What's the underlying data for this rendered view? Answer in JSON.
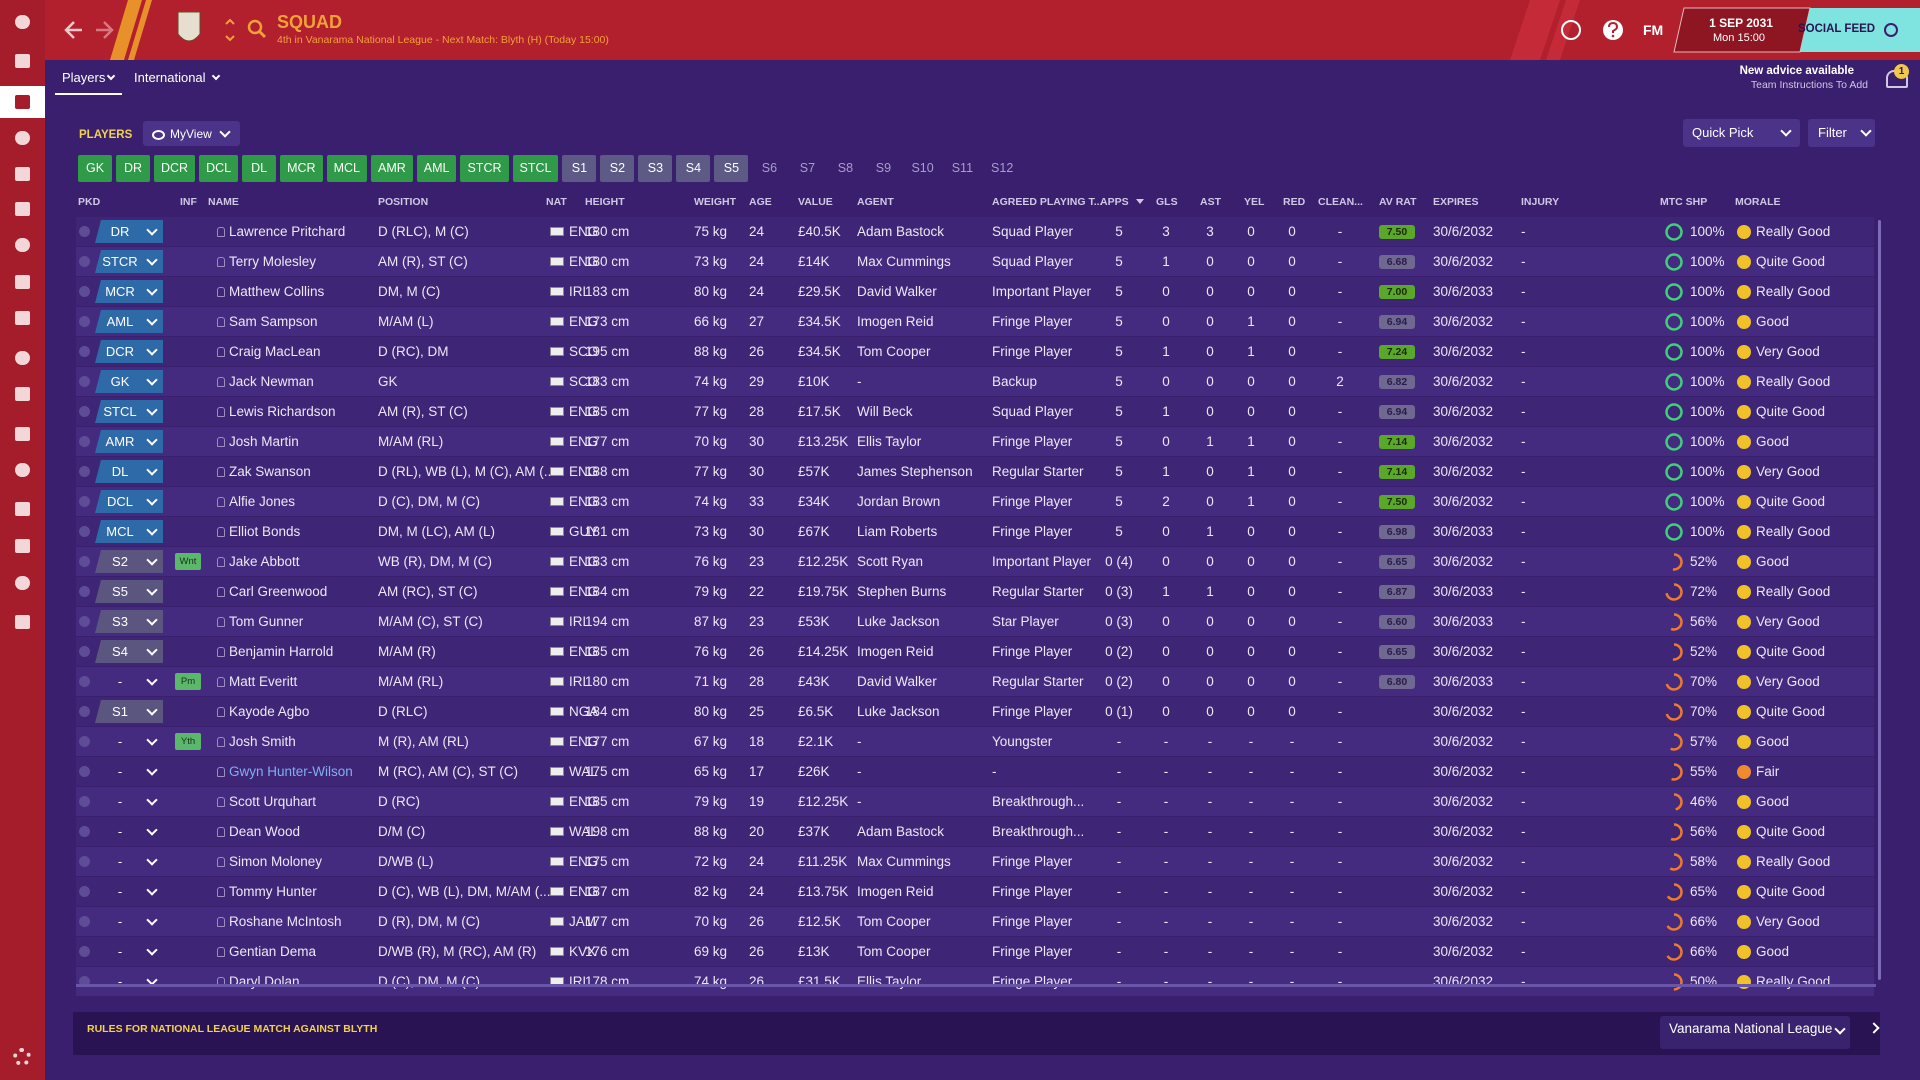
{
  "header": {
    "title": "SQUAD",
    "subtitle": "4th in Vanarama National League - Next Match: Blyth (H) (Today 15:00)",
    "date": "1 SEP 2031",
    "time": "Mon 15:00",
    "brand": "FM",
    "social": "SOCIAL FEED"
  },
  "tabs": [
    "Players",
    "International"
  ],
  "advice": {
    "title": "New advice available",
    "detail": "Team Instructions To Add",
    "count": "1"
  },
  "panel": {
    "label": "PLAYERS",
    "view": "MyView",
    "quick_pick": "Quick Pick",
    "filter": "Filter"
  },
  "positions": {
    "starting": [
      "GK",
      "DR",
      "DCR",
      "DCL",
      "DL",
      "MCR",
      "MCL",
      "AMR",
      "AML",
      "STCR",
      "STCL"
    ],
    "subs_used": [
      "S1",
      "S2",
      "S3",
      "S4",
      "S5"
    ],
    "subs_empty": [
      "S6",
      "S7",
      "S8",
      "S9",
      "S10",
      "S11",
      "S12"
    ]
  },
  "table": {
    "columns": [
      "PKD",
      "INF",
      "NAME",
      "POSITION",
      "NAT",
      "HEIGHT",
      "WEIGHT",
      "AGE",
      "VALUE",
      "AGENT",
      "AGREED PLAYING T...",
      "APPS",
      "GLS",
      "AST",
      "YEL",
      "RED",
      "CLEAN...",
      "AV RAT",
      "EXPIRES",
      "INJURY",
      "MTC SHP",
      "MORALE"
    ],
    "rows": [
      [
        "DR",
        null,
        "Lawrence Pritchard",
        "D (RLC), M (C)",
        "ENG",
        "180 cm",
        "75 kg",
        "24",
        "£40.5K",
        "Adam Bastock",
        "Squad Player",
        "5",
        "3",
        "3",
        "0",
        "0",
        "-",
        "7.50",
        "30/6/2032",
        "-",
        "100%",
        "Really Good"
      ],
      [
        "STCR",
        null,
        "Terry Molesley",
        "AM (R), ST (C)",
        "ENG",
        "180 cm",
        "73 kg",
        "24",
        "£14K",
        "Max Cummings",
        "Squad Player",
        "5",
        "1",
        "0",
        "0",
        "0",
        "-",
        "6.68",
        "30/6/2032",
        "-",
        "100%",
        "Quite Good"
      ],
      [
        "MCR",
        null,
        "Matthew Collins",
        "DM, M (C)",
        "IRL",
        "183 cm",
        "80 kg",
        "24",
        "£29.5K",
        "David Walker",
        "Important Player",
        "5",
        "0",
        "0",
        "0",
        "0",
        "-",
        "7.00",
        "30/6/2033",
        "-",
        "100%",
        "Really Good"
      ],
      [
        "AML",
        null,
        "Sam Sampson",
        "M/AM (L)",
        "ENG",
        "173 cm",
        "66 kg",
        "27",
        "£34.5K",
        "Imogen Reid",
        "Fringe Player",
        "5",
        "0",
        "0",
        "1",
        "0",
        "-",
        "6.94",
        "30/6/2032",
        "-",
        "100%",
        "Good"
      ],
      [
        "DCR",
        null,
        "Craig MacLean",
        "D (RC), DM",
        "SCO",
        "195 cm",
        "88 kg",
        "26",
        "£34.5K",
        "Tom Cooper",
        "Fringe Player",
        "5",
        "1",
        "0",
        "1",
        "0",
        "-",
        "7.24",
        "30/6/2032",
        "-",
        "100%",
        "Very Good"
      ],
      [
        "GK",
        null,
        "Jack Newman",
        "GK",
        "SCO",
        "183 cm",
        "74 kg",
        "29",
        "£10K",
        "-",
        "Backup",
        "5",
        "0",
        "0",
        "0",
        "0",
        "2",
        "6.82",
        "30/6/2032",
        "-",
        "100%",
        "Really Good"
      ],
      [
        "STCL",
        null,
        "Lewis Richardson",
        "AM (R), ST (C)",
        "ENG",
        "185 cm",
        "77 kg",
        "28",
        "£17.5K",
        "Will Beck",
        "Squad Player",
        "5",
        "1",
        "0",
        "0",
        "0",
        "-",
        "6.94",
        "30/6/2032",
        "-",
        "100%",
        "Quite Good"
      ],
      [
        "AMR",
        null,
        "Josh Martin",
        "M/AM (RL)",
        "ENG",
        "177 cm",
        "70 kg",
        "30",
        "£13.25K",
        "Ellis Taylor",
        "Fringe Player",
        "5",
        "0",
        "1",
        "1",
        "0",
        "-",
        "7.14",
        "30/6/2032",
        "-",
        "100%",
        "Good"
      ],
      [
        "DL",
        null,
        "Zak Swanson",
        "D (RL), WB (L), M (C), AM (...",
        "ENG",
        "188 cm",
        "77 kg",
        "30",
        "£57K",
        "James Stephenson",
        "Regular Starter",
        "5",
        "1",
        "0",
        "1",
        "0",
        "-",
        "7.14",
        "30/6/2032",
        "-",
        "100%",
        "Very Good"
      ],
      [
        "DCL",
        null,
        "Alfie Jones",
        "D (C), DM, M (C)",
        "ENG",
        "183 cm",
        "74 kg",
        "33",
        "£34K",
        "Jordan Brown",
        "Fringe Player",
        "5",
        "2",
        "0",
        "1",
        "0",
        "-",
        "7.50",
        "30/6/2032",
        "-",
        "100%",
        "Quite Good"
      ],
      [
        "MCL",
        null,
        "Elliot Bonds",
        "DM, M (LC), AM (L)",
        "GUY",
        "181 cm",
        "73 kg",
        "30",
        "£67K",
        "Liam Roberts",
        "Fringe Player",
        "5",
        "0",
        "1",
        "0",
        "0",
        "-",
        "6.98",
        "30/6/2033",
        "-",
        "100%",
        "Really Good"
      ],
      [
        "S2",
        "Wnt",
        "Jake Abbott",
        "WB (R), DM, M (C)",
        "ENG",
        "183 cm",
        "76 kg",
        "23",
        "£12.25K",
        "Scott Ryan",
        "Important Player",
        "0 (4)",
        "0",
        "0",
        "0",
        "0",
        "-",
        "6.65",
        "30/6/2032",
        "-",
        "52%",
        "Good"
      ],
      [
        "S5",
        null,
        "Carl Greenwood",
        "AM (RC), ST (C)",
        "ENG",
        "184 cm",
        "79 kg",
        "22",
        "£19.75K",
        "Stephen Burns",
        "Regular Starter",
        "0 (3)",
        "1",
        "1",
        "0",
        "0",
        "-",
        "6.87",
        "30/6/2033",
        "-",
        "72%",
        "Really Good"
      ],
      [
        "S3",
        null,
        "Tom Gunner",
        "M/AM (C), ST (C)",
        "IRL",
        "194 cm",
        "87 kg",
        "23",
        "£53K",
        "Luke Jackson",
        "Star Player",
        "0 (3)",
        "0",
        "0",
        "0",
        "0",
        "-",
        "6.60",
        "30/6/2033",
        "-",
        "56%",
        "Very Good"
      ],
      [
        "S4",
        null,
        "Benjamin Harrold",
        "M/AM (R)",
        "ENG",
        "185 cm",
        "76 kg",
        "26",
        "£14.25K",
        "Imogen Reid",
        "Fringe Player",
        "0 (2)",
        "0",
        "0",
        "0",
        "0",
        "-",
        "6.65",
        "30/6/2032",
        "-",
        "52%",
        "Quite Good"
      ],
      [
        "-",
        "Pm",
        "Matt Everitt",
        "M/AM (RL)",
        "IRL",
        "180 cm",
        "71 kg",
        "28",
        "£43K",
        "David Walker",
        "Regular Starter",
        "0 (2)",
        "0",
        "0",
        "0",
        "0",
        "-",
        "6.80",
        "30/6/2033",
        "-",
        "70%",
        "Very Good"
      ],
      [
        "S1",
        null,
        "Kayode Agbo",
        "D (RLC)",
        "NGA",
        "184 cm",
        "80 kg",
        "25",
        "£6.5K",
        "Luke Jackson",
        "Fringe Player",
        "0 (1)",
        "0",
        "0",
        "0",
        "0",
        "-",
        null,
        "30/6/2032",
        "-",
        "70%",
        "Quite Good"
      ],
      [
        "-",
        "Yth",
        "Josh Smith",
        "M (R), AM (RL)",
        "ENG",
        "177 cm",
        "67 kg",
        "18",
        "£2.1K",
        "-",
        "Youngster",
        "-",
        "-",
        "-",
        "-",
        "-",
        "-",
        null,
        "30/6/2032",
        "-",
        "57%",
        "Good"
      ],
      [
        "-",
        null,
        "Gwyn Hunter-Wilson",
        "M (RC), AM (C), ST (C)",
        "WAL",
        "175 cm",
        "65 kg",
        "17",
        "£26K",
        "-",
        "-",
        "-",
        "-",
        "-",
        "-",
        "-",
        "-",
        null,
        "30/6/2032",
        "-",
        "55%",
        "Fair"
      ],
      [
        "-",
        null,
        "Scott Urquhart",
        "D (RC)",
        "ENG",
        "185 cm",
        "79 kg",
        "19",
        "£12.25K",
        "-",
        "Breakthrough...",
        "-",
        "-",
        "-",
        "-",
        "-",
        "-",
        null,
        "30/6/2032",
        "-",
        "46%",
        "Good"
      ],
      [
        "-",
        null,
        "Dean Wood",
        "D/M (C)",
        "WAL",
        "198 cm",
        "88 kg",
        "20",
        "£37K",
        "Adam Bastock",
        "Breakthrough...",
        "-",
        "-",
        "-",
        "-",
        "-",
        "-",
        null,
        "30/6/2032",
        "-",
        "56%",
        "Quite Good"
      ],
      [
        "-",
        null,
        "Simon Moloney",
        "D/WB (L)",
        "ENG",
        "175 cm",
        "72 kg",
        "24",
        "£11.25K",
        "Max Cummings",
        "Fringe Player",
        "-",
        "-",
        "-",
        "-",
        "-",
        "-",
        null,
        "30/6/2032",
        "-",
        "58%",
        "Really Good"
      ],
      [
        "-",
        null,
        "Tommy Hunter",
        "D (C), WB (L), DM, M/AM (...",
        "ENG",
        "187 cm",
        "82 kg",
        "24",
        "£13.75K",
        "Imogen Reid",
        "Fringe Player",
        "-",
        "-",
        "-",
        "-",
        "-",
        "-",
        null,
        "30/6/2032",
        "-",
        "65%",
        "Quite Good"
      ],
      [
        "-",
        null,
        "Roshane McIntosh",
        "D (R), DM, M (C)",
        "JAM",
        "177 cm",
        "70 kg",
        "26",
        "£12.5K",
        "Tom Cooper",
        "Fringe Player",
        "-",
        "-",
        "-",
        "-",
        "-",
        "-",
        null,
        "30/6/2032",
        "-",
        "66%",
        "Very Good"
      ],
      [
        "-",
        null,
        "Gentian Dema",
        "D/WB (R), M (RC), AM (R)",
        "KVX",
        "176 cm",
        "69 kg",
        "26",
        "£13K",
        "Tom Cooper",
        "Fringe Player",
        "-",
        "-",
        "-",
        "-",
        "-",
        "-",
        null,
        "30/6/2032",
        "-",
        "66%",
        "Good"
      ],
      [
        "-",
        null,
        "Daryl Dolan",
        "D (C), DM, M (C)",
        "IRL",
        "178 cm",
        "74 kg",
        "26",
        "£31.5K",
        "Ellis Taylor",
        "Fringe Player",
        "-",
        "-",
        "-",
        "-",
        "-",
        "-",
        null,
        "30/6/2032",
        "-",
        "50%",
        "Really Good"
      ]
    ]
  },
  "footer": {
    "rules": "RULES FOR NATIONAL LEAGUE MATCH AGAINST BLYTH",
    "competition": "Vanarama National League"
  }
}
